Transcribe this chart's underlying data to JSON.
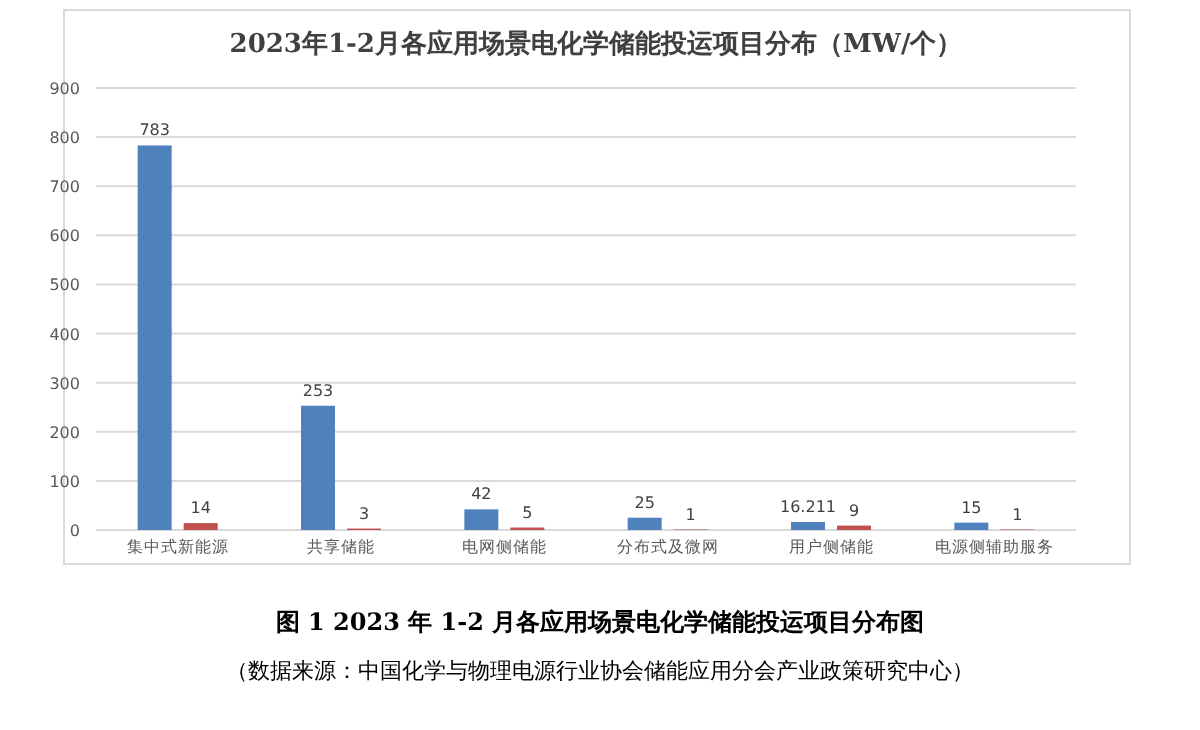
{
  "chart_data": {
    "type": "bar",
    "title": "2023年1-2月各应用场景电化学储能投运项目分布（MW/个）",
    "categories": [
      "集中式新能源",
      "共享储能",
      "电网侧储能",
      "分布式及微网",
      "用户侧储能",
      "电源侧辅助服务"
    ],
    "series": [
      {
        "color": "#4f81bd",
        "values": [
          783,
          253,
          42,
          25,
          16.211,
          15
        ]
      },
      {
        "color": "#c0504d",
        "values": [
          14,
          3,
          5,
          1,
          9,
          1
        ]
      }
    ],
    "ylim": [
      0,
      900
    ],
    "yticks": [
      0,
      100,
      200,
      300,
      400,
      500,
      600,
      700,
      800,
      900
    ],
    "grid": "y",
    "data_labels": true,
    "annotations": [
      "图 1 2023 年 1-2 月各应用场景电化学储能投运项目分布图",
      "（数据来源：中国化学与物理电源行业协会储能应用分会产业政策研究中心）"
    ]
  }
}
